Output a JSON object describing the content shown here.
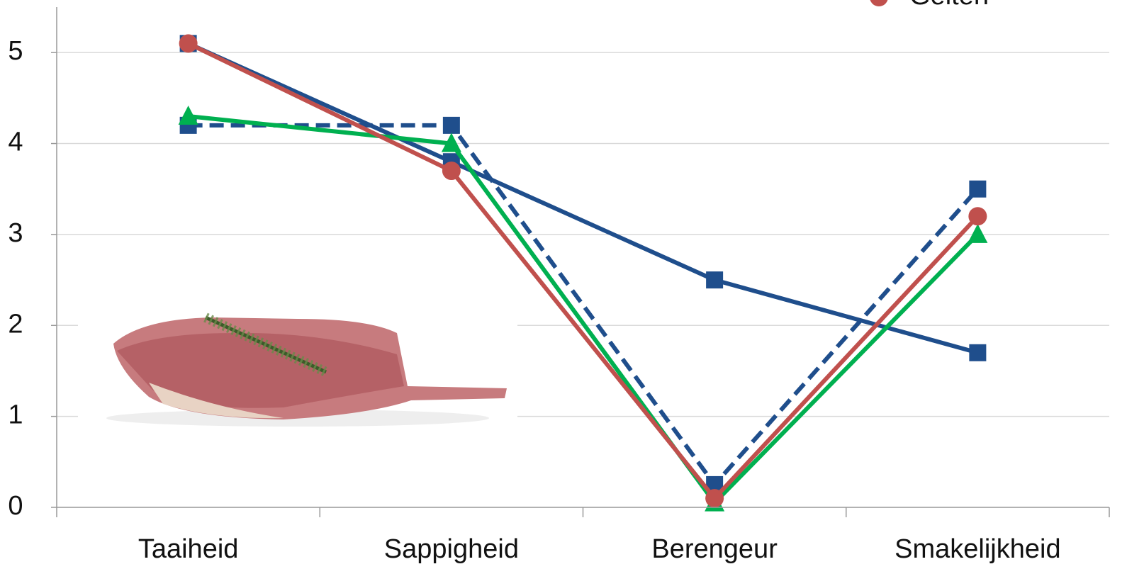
{
  "chart_data": {
    "type": "line",
    "categories": [
      "Taaiheid",
      "Sappigheid",
      "Berengeur",
      "Smakelijkheid"
    ],
    "series": [
      {
        "color": "#1f4e8c",
        "marker": "square",
        "dashed": false,
        "values": [
          5.1,
          3.8,
          2.5,
          1.7
        ]
      },
      {
        "color": "#1f4e8c",
        "marker": "square",
        "dashed": true,
        "values": [
          4.2,
          4.2,
          0.25,
          3.5
        ]
      },
      {
        "color": "#00b050",
        "marker": "triangle",
        "dashed": false,
        "values": [
          4.3,
          4.0,
          0.05,
          3.0
        ]
      },
      {
        "name": "Gelten",
        "color": "#c0504d",
        "marker": "circle",
        "dashed": false,
        "values": [
          5.1,
          3.7,
          0.1,
          3.2
        ]
      }
    ],
    "ylim": [
      0,
      5.5
    ],
    "yticks": [
      0,
      1,
      2,
      3,
      4,
      5
    ],
    "grid": true,
    "legend": "top-right"
  }
}
